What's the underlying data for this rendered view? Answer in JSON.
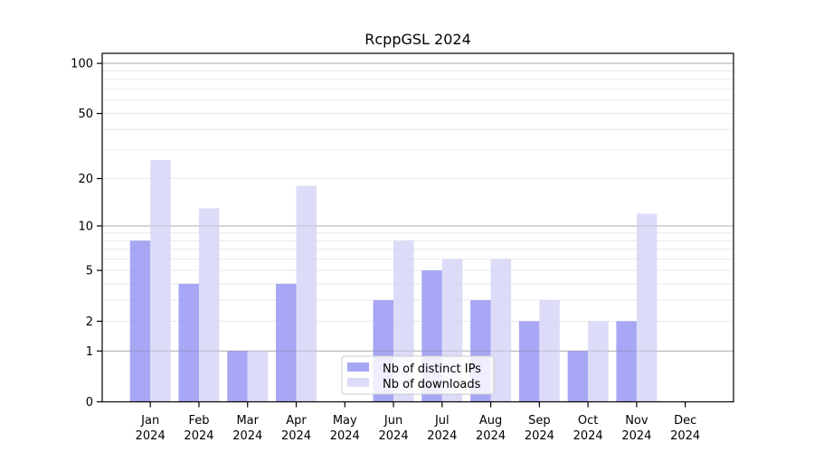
{
  "chart_data": {
    "type": "bar",
    "title": "RcppGSL 2024",
    "categories": [
      "Jan",
      "Feb",
      "Mar",
      "Apr",
      "May",
      "Jun",
      "Jul",
      "Aug",
      "Sep",
      "Oct",
      "Nov",
      "Dec"
    ],
    "category_year": "2024",
    "series": [
      {
        "name": "Nb of distinct IPs",
        "color": "#9191f3",
        "values": [
          8,
          4,
          1,
          4,
          0,
          3,
          5,
          3,
          2,
          1,
          2,
          0
        ]
      },
      {
        "name": "Nb of downloads",
        "color": "#d3d3f6",
        "values": [
          26,
          13,
          1,
          18,
          0,
          8,
          6,
          6,
          3,
          2,
          12,
          0
        ]
      }
    ],
    "xlabel": "",
    "ylabel": "",
    "yscale": "log1p",
    "ylim": [
      0,
      115
    ],
    "yticks": [
      0,
      1,
      2,
      5,
      10,
      20,
      50,
      100
    ],
    "gridlines": {
      "major": [
        1,
        10,
        100
      ],
      "minor": [
        2,
        3,
        4,
        5,
        6,
        7,
        8,
        9,
        20,
        30,
        40,
        50,
        60,
        70,
        80,
        90
      ]
    },
    "grid": true,
    "legend_position": "lower center",
    "colors": {
      "bar_distinct_ips": "#9191f3",
      "bar_downloads": "#d3d3f6",
      "major_grid": "#c0c0c0",
      "minor_grid": "#e9e9e9",
      "axis": "#000000",
      "legend_border": "#cccccc"
    }
  }
}
